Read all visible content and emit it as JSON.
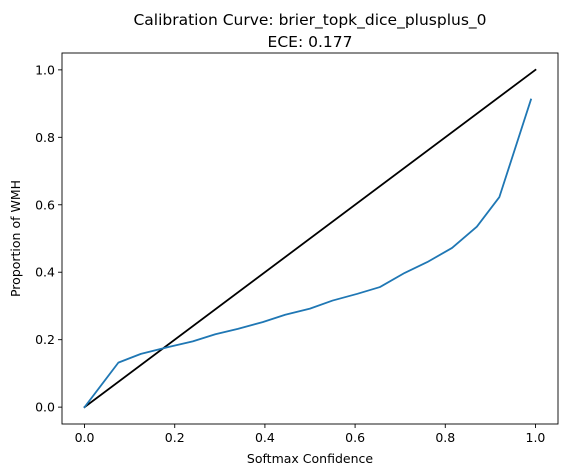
{
  "chart_data": {
    "type": "line",
    "title": "Calibration Curve: brier_topk_dice_plusplus_0",
    "subtitle": "ECE: 0.177",
    "xlabel": "Softmax Confidence",
    "ylabel": "Proportion of WMH",
    "xlim": [
      -0.05,
      1.05
    ],
    "ylim": [
      -0.05,
      1.05
    ],
    "xticks": [
      "0.0",
      "0.2",
      "0.4",
      "0.6",
      "0.8",
      "1.0"
    ],
    "yticks": [
      "0.0",
      "0.2",
      "0.4",
      "0.6",
      "0.8",
      "1.0"
    ],
    "grid": false,
    "series": [
      {
        "color": "#000000",
        "x": [
          0.0,
          1.0
        ],
        "y": [
          0.0,
          1.0
        ]
      },
      {
        "color": "#1f77b4",
        "x": [
          0.0,
          0.075,
          0.125,
          0.185,
          0.24,
          0.29,
          0.34,
          0.395,
          0.445,
          0.5,
          0.55,
          0.605,
          0.655,
          0.71,
          0.76,
          0.815,
          0.87,
          0.92,
          0.99
        ],
        "y": [
          0.0,
          0.132,
          0.158,
          0.178,
          0.195,
          0.216,
          0.232,
          0.252,
          0.274,
          0.292,
          0.316,
          0.336,
          0.356,
          0.398,
          0.43,
          0.472,
          0.535,
          0.623,
          0.912
        ]
      }
    ]
  }
}
